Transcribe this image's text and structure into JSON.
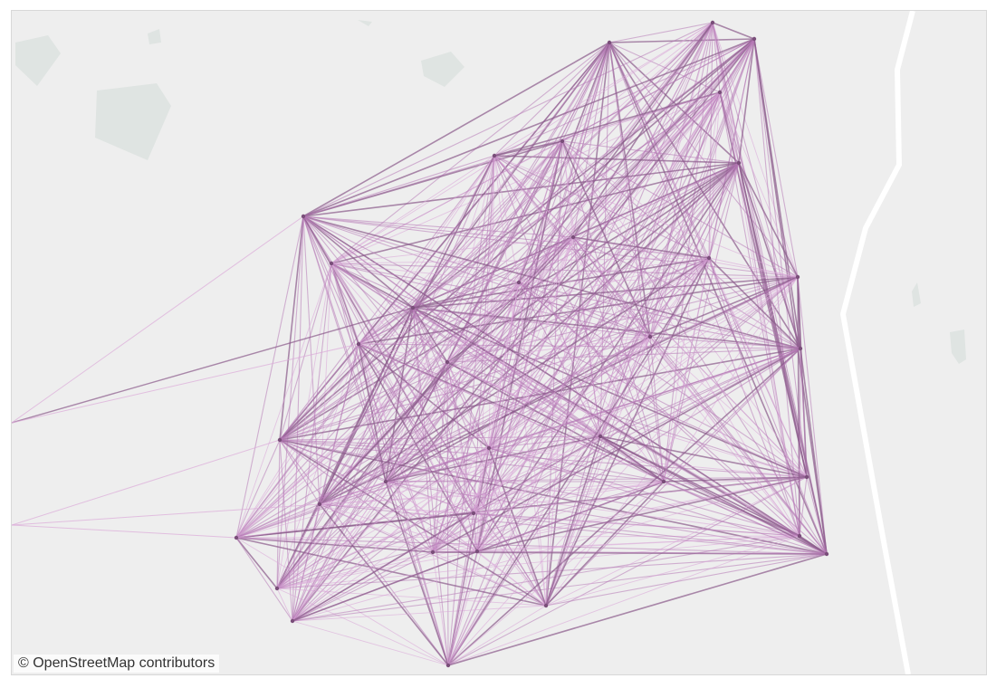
{
  "attribution": "© OpenStreetMap contributors",
  "colors": {
    "land": "#eeeeee",
    "building": "#dfe4e2",
    "road": "#ffffff",
    "edge_dark": "#8a5a8a",
    "edge_mid": "#b77ab6",
    "edge_light": "#dba9d8",
    "node": "#7a4e7a"
  },
  "network": {
    "node_count": 30,
    "style": "complete flow graph between sensor/locations"
  }
}
